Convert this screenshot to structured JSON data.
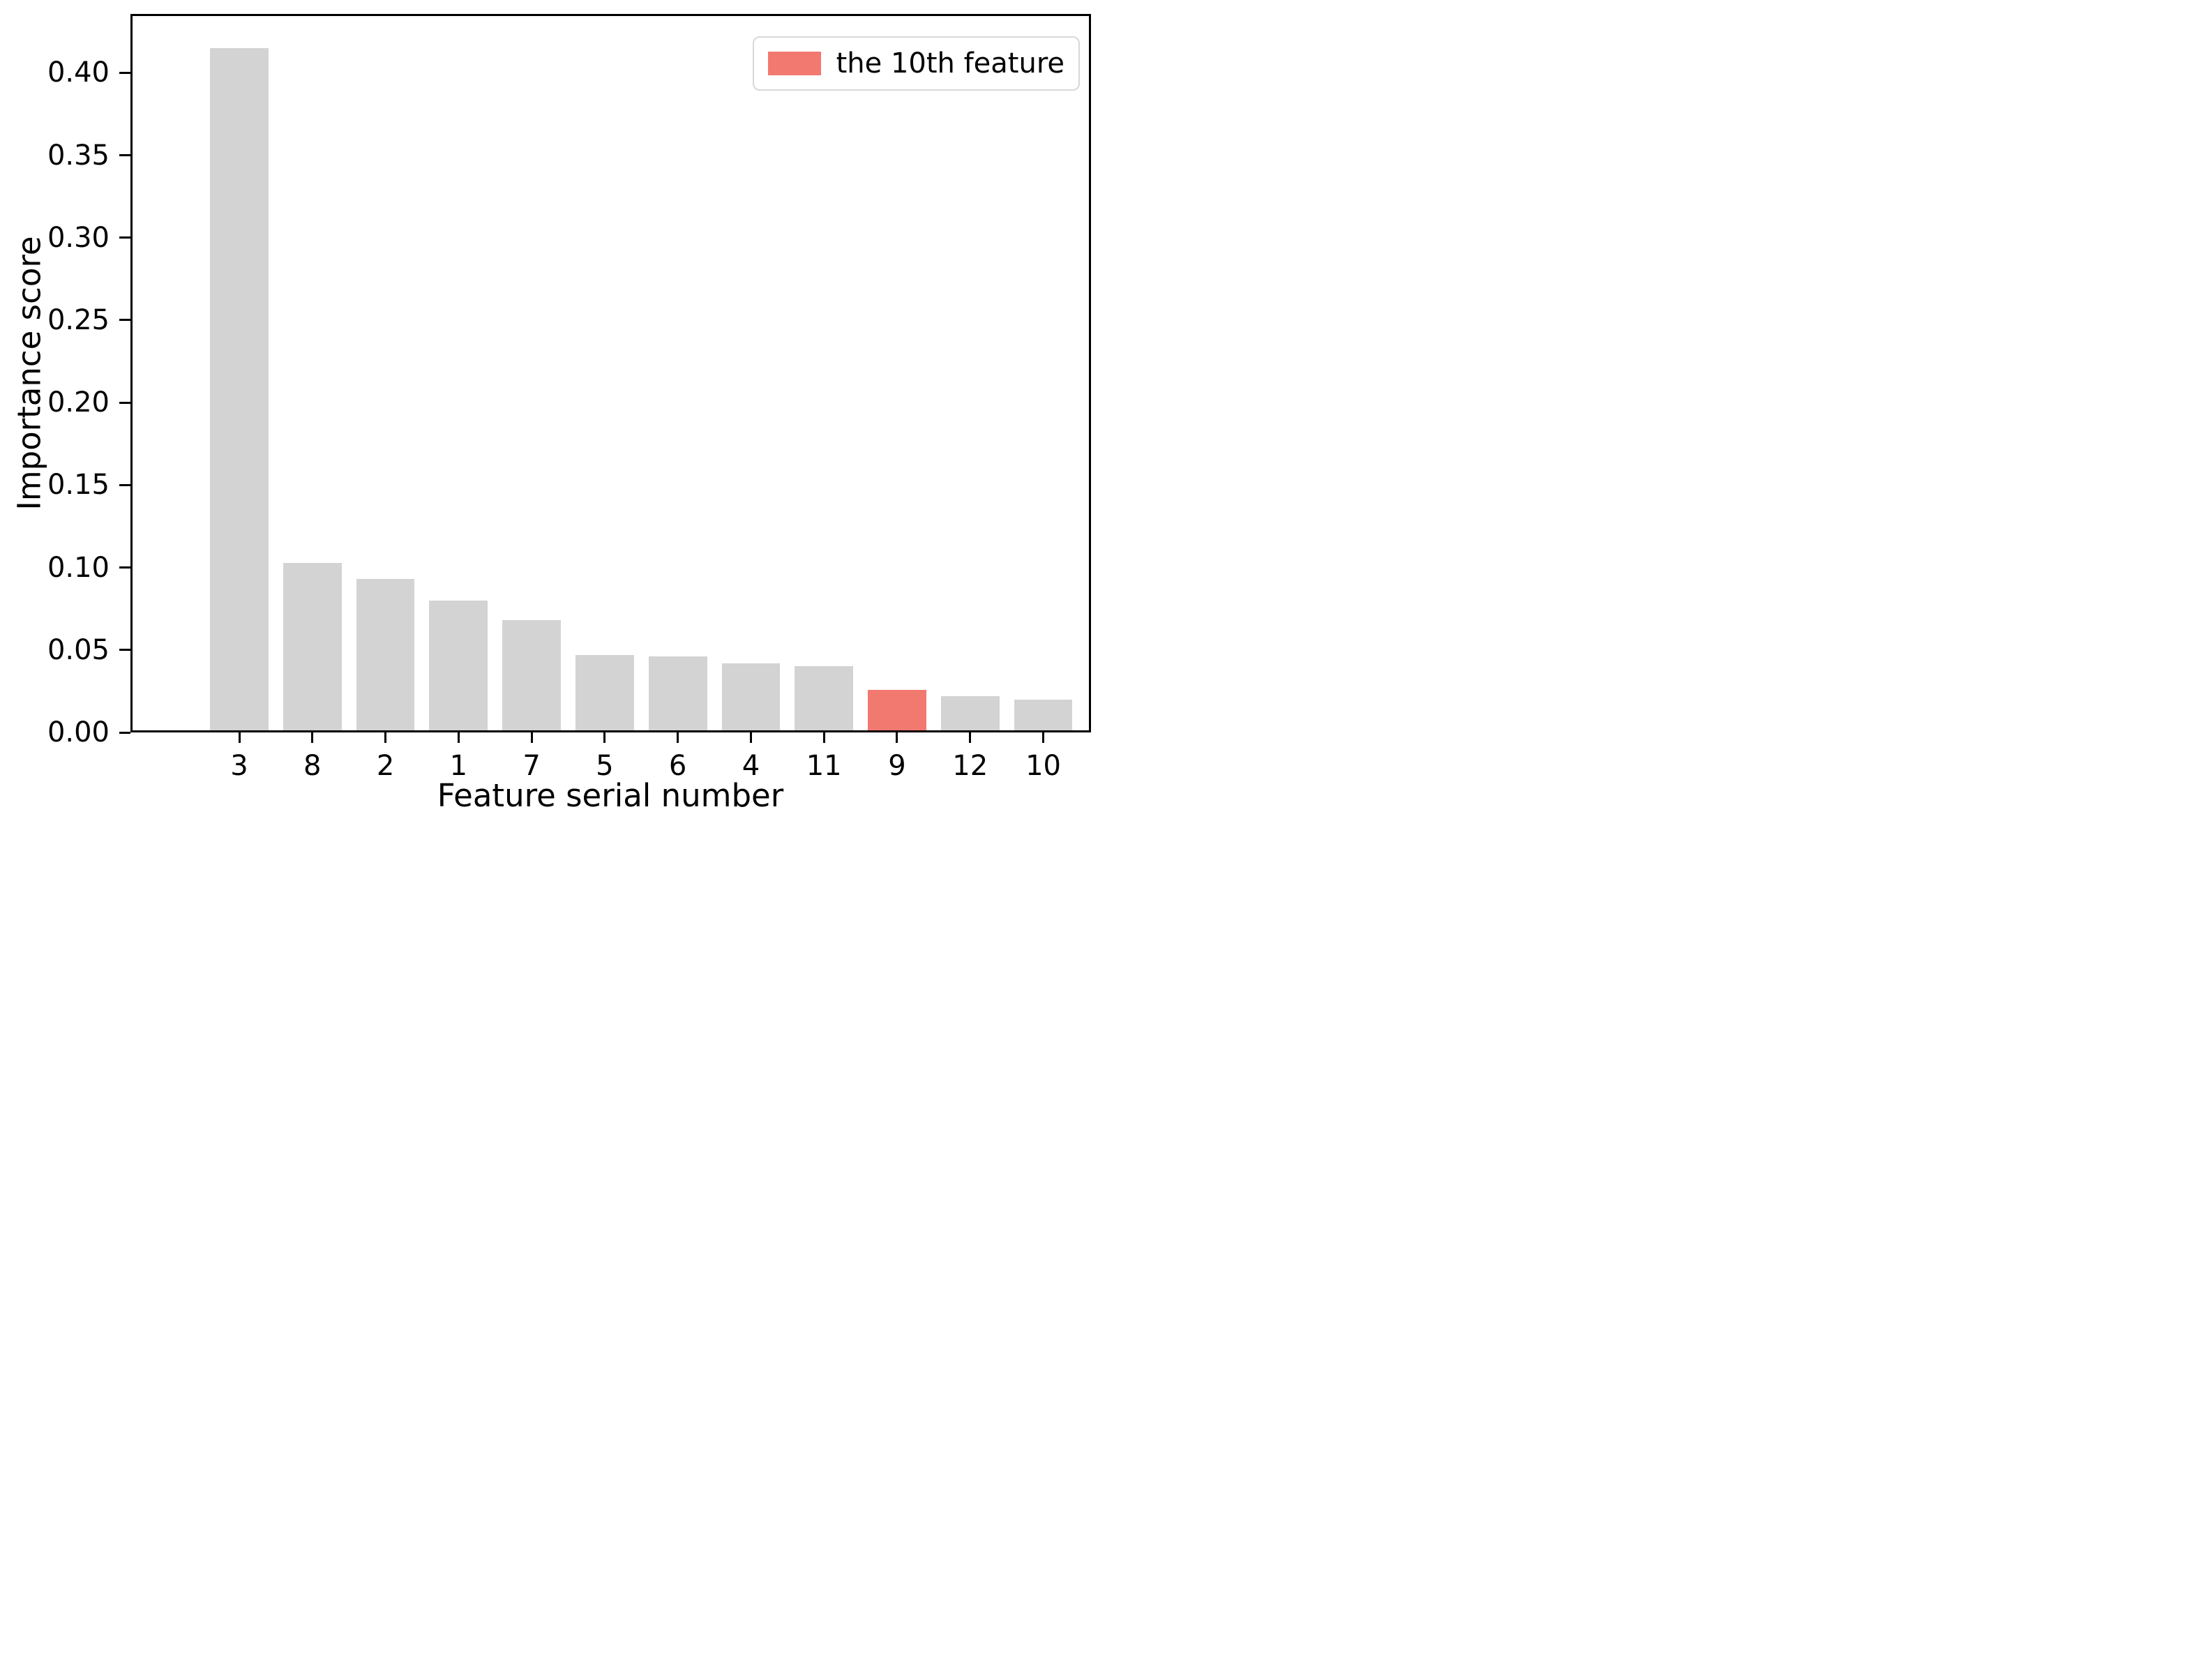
{
  "figure": {
    "background": "#ffffff",
    "axis_color": "#000000"
  },
  "chart_data": {
    "type": "bar",
    "title": "",
    "xlabel": "Feature serial number",
    "ylabel": "Importance score",
    "categories": [
      "3",
      "8",
      "2",
      "1",
      "7",
      "5",
      "6",
      "4",
      "11",
      "9",
      "12",
      "10"
    ],
    "values": [
      0.415,
      0.103,
      0.093,
      0.08,
      0.068,
      0.047,
      0.046,
      0.042,
      0.04,
      0.026,
      0.022,
      0.02
    ],
    "bar_color": "#d3d3d3",
    "highlight_index": 9,
    "highlight_category": "9",
    "highlight_color": "#f27970",
    "ylim": [
      0,
      0.4357
    ],
    "yticks": [
      0.0,
      0.05,
      0.1,
      0.15,
      0.2,
      0.25,
      0.3,
      0.35,
      0.4
    ],
    "ytick_labels": [
      "0.00",
      "0.05",
      "0.10",
      "0.15",
      "0.20",
      "0.25",
      "0.30",
      "0.35",
      "0.40"
    ],
    "grid": false,
    "legend": {
      "position": "upper right",
      "entries": [
        {
          "label": "the 10th feature",
          "color": "#f27970"
        }
      ]
    }
  }
}
